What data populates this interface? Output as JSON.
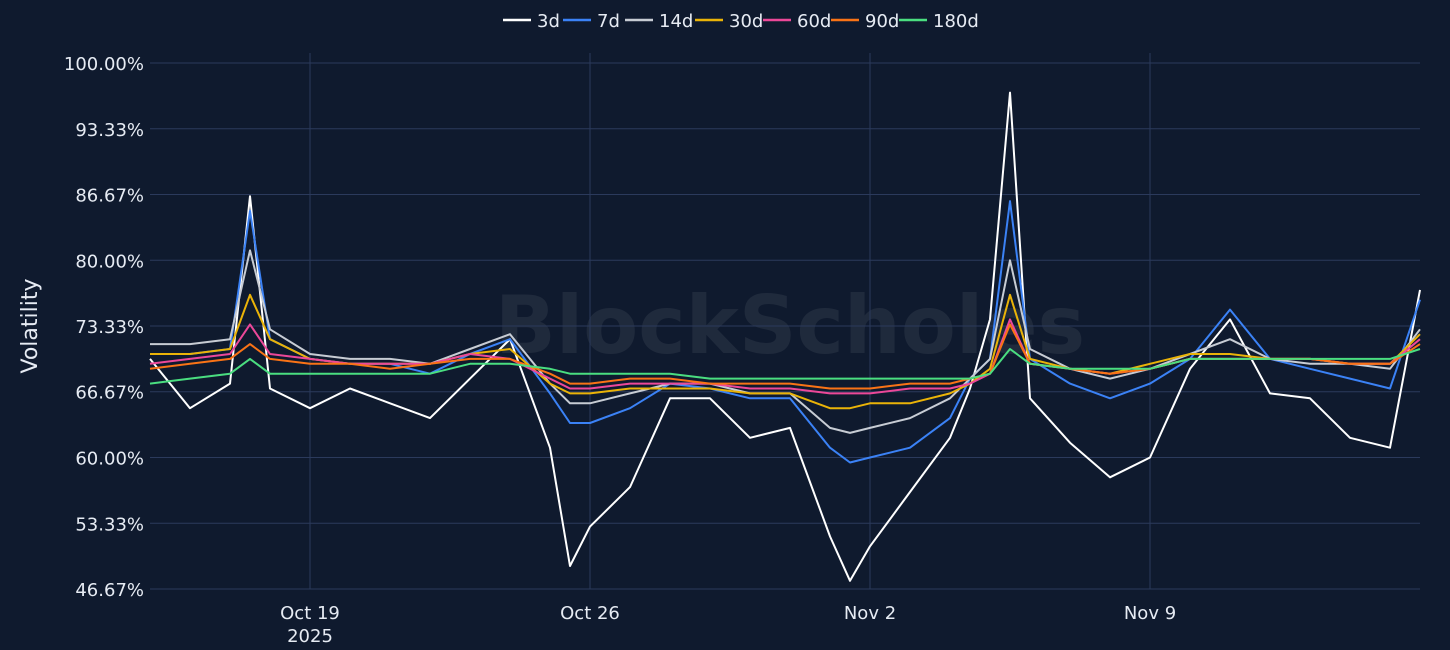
{
  "watermark": "BlockScholes",
  "chart_data": {
    "type": "line",
    "title": "",
    "xlabel": "",
    "ylabel": "Volatility",
    "legend_position": "top-center",
    "grid": true,
    "ylim": [
      46.67,
      100.0
    ],
    "xlim": [
      "2025-10-15T00:00",
      "2025-11-15T18:00"
    ],
    "yticks": [
      {
        "value": 46.67,
        "label": "46.67%"
      },
      {
        "value": 53.33,
        "label": "53.33%"
      },
      {
        "value": 60.0,
        "label": "60.00%"
      },
      {
        "value": 66.67,
        "label": "66.67%"
      },
      {
        "value": 73.33,
        "label": "73.33%"
      },
      {
        "value": 80.0,
        "label": "80.00%"
      },
      {
        "value": 86.67,
        "label": "86.67%"
      },
      {
        "value": 93.33,
        "label": "93.33%"
      },
      {
        "value": 100.0,
        "label": "100.00%"
      }
    ],
    "xticks": [
      {
        "date": "2025-10-19",
        "label": "Oct 19",
        "sublabel": "2025"
      },
      {
        "date": "2025-10-26",
        "label": "Oct 26",
        "sublabel": ""
      },
      {
        "date": "2025-11-02",
        "label": "Nov 2",
        "sublabel": ""
      },
      {
        "date": "2025-11-09",
        "label": "Nov 9",
        "sublabel": ""
      }
    ],
    "x": [
      "2025-10-15T00:00",
      "2025-10-16T00:00",
      "2025-10-17T00:00",
      "2025-10-17T12:00",
      "2025-10-18T00:00",
      "2025-10-19T00:00",
      "2025-10-20T00:00",
      "2025-10-21T00:00",
      "2025-10-22T00:00",
      "2025-10-23T00:00",
      "2025-10-24T00:00",
      "2025-10-25T00:00",
      "2025-10-25T12:00",
      "2025-10-26T00:00",
      "2025-10-27T00:00",
      "2025-10-28T00:00",
      "2025-10-29T00:00",
      "2025-10-30T00:00",
      "2025-10-31T00:00",
      "2025-11-01T00:00",
      "2025-11-01T12:00",
      "2025-11-02T00:00",
      "2025-11-03T00:00",
      "2025-11-04T00:00",
      "2025-11-04T12:00",
      "2025-11-05T00:00",
      "2025-11-05T12:00",
      "2025-11-06T00:00",
      "2025-11-07T00:00",
      "2025-11-08T00:00",
      "2025-11-09T00:00",
      "2025-11-10T00:00",
      "2025-11-11T00:00",
      "2025-11-12T00:00",
      "2025-11-13T00:00",
      "2025-11-14T00:00",
      "2025-11-15T00:00",
      "2025-11-15T18:00"
    ],
    "series": [
      {
        "name": "3d",
        "color": "#ffffff",
        "values": [
          70.0,
          65.0,
          67.5,
          86.5,
          67.0,
          65.0,
          67.0,
          65.5,
          64.0,
          68.0,
          72.0,
          61.0,
          49.0,
          53.0,
          57.0,
          66.0,
          66.0,
          62.0,
          63.0,
          52.0,
          47.5,
          51.0,
          56.5,
          62.0,
          67.0,
          74.0,
          97.0,
          66.0,
          61.5,
          58.0,
          60.0,
          69.0,
          74.0,
          66.5,
          66.0,
          62.0,
          61.0,
          77.0
        ]
      },
      {
        "name": "7d",
        "color": "#3b82f6",
        "values": [
          70.5,
          70.5,
          71.0,
          85.0,
          72.0,
          70.0,
          69.5,
          69.5,
          68.5,
          70.5,
          72.0,
          66.5,
          63.5,
          63.5,
          65.0,
          67.5,
          67.0,
          66.0,
          66.0,
          61.0,
          59.5,
          60.0,
          61.0,
          64.0,
          68.0,
          70.0,
          86.0,
          70.0,
          67.5,
          66.0,
          67.5,
          70.0,
          75.0,
          70.0,
          69.0,
          68.0,
          67.0,
          76.0
        ]
      },
      {
        "name": "14d",
        "color": "#c7ccd4",
        "values": [
          71.5,
          71.5,
          72.0,
          81.0,
          73.0,
          70.5,
          70.0,
          70.0,
          69.5,
          71.0,
          72.5,
          67.5,
          65.5,
          65.5,
          66.5,
          67.5,
          67.5,
          66.5,
          66.5,
          63.0,
          62.5,
          63.0,
          64.0,
          66.0,
          68.0,
          70.0,
          80.0,
          71.0,
          69.0,
          68.0,
          69.0,
          70.5,
          72.0,
          70.0,
          69.5,
          69.5,
          69.0,
          73.0
        ]
      },
      {
        "name": "30d",
        "color": "#eab308",
        "values": [
          70.5,
          70.5,
          71.0,
          76.5,
          72.0,
          70.0,
          69.5,
          69.5,
          69.5,
          70.5,
          71.0,
          67.5,
          66.5,
          66.5,
          67.0,
          67.0,
          67.0,
          66.5,
          66.5,
          65.0,
          65.0,
          65.5,
          65.5,
          66.5,
          67.5,
          69.0,
          76.5,
          70.0,
          69.0,
          68.5,
          69.5,
          70.5,
          70.5,
          70.0,
          70.0,
          69.5,
          69.5,
          72.5
        ]
      },
      {
        "name": "60d",
        "color": "#ec4899",
        "values": [
          69.5,
          70.0,
          70.5,
          73.5,
          70.5,
          70.0,
          69.5,
          69.5,
          69.5,
          70.5,
          70.0,
          68.0,
          67.0,
          67.0,
          67.5,
          67.5,
          67.5,
          67.0,
          67.0,
          66.5,
          66.5,
          66.5,
          67.0,
          67.0,
          67.5,
          68.5,
          74.0,
          69.5,
          69.0,
          68.5,
          69.0,
          70.0,
          70.0,
          70.0,
          70.0,
          69.5,
          69.5,
          72.0
        ]
      },
      {
        "name": "90d",
        "color": "#f97316",
        "values": [
          69.0,
          69.5,
          70.0,
          71.5,
          70.0,
          69.5,
          69.5,
          69.0,
          69.5,
          70.0,
          70.0,
          68.5,
          67.5,
          67.5,
          68.0,
          68.0,
          67.5,
          67.5,
          67.5,
          67.0,
          67.0,
          67.0,
          67.5,
          67.5,
          68.0,
          68.5,
          73.5,
          69.5,
          69.0,
          68.5,
          69.0,
          70.0,
          70.0,
          70.0,
          70.0,
          69.5,
          69.5,
          71.5
        ]
      },
      {
        "name": "180d",
        "color": "#4ade80",
        "values": [
          67.5,
          68.0,
          68.5,
          70.0,
          68.5,
          68.5,
          68.5,
          68.5,
          68.5,
          69.5,
          69.5,
          69.0,
          68.5,
          68.5,
          68.5,
          68.5,
          68.0,
          68.0,
          68.0,
          68.0,
          68.0,
          68.0,
          68.0,
          68.0,
          68.0,
          68.5,
          71.0,
          69.5,
          69.0,
          69.0,
          69.0,
          70.0,
          70.0,
          70.0,
          70.0,
          70.0,
          70.0,
          71.0
        ]
      }
    ]
  }
}
